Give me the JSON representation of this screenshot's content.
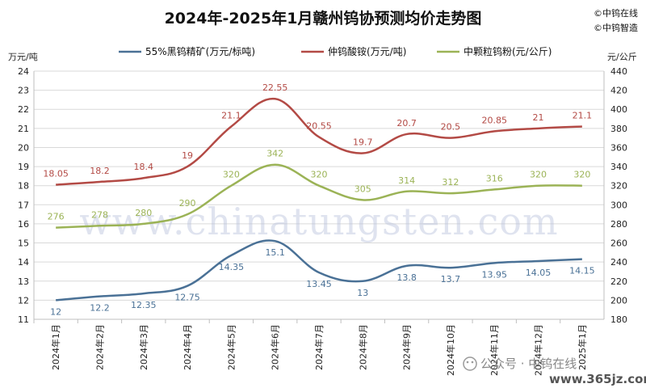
{
  "chart_data": {
    "type": "line",
    "title": "2024年-2025年1月赣州钨协预测均价走势图",
    "copyright": [
      "©中钨在线",
      "©中钨智造"
    ],
    "left_unit": "万元/吨",
    "right_unit": "元/公斤",
    "left_ylim": [
      11,
      24
    ],
    "right_ylim": [
      180,
      440
    ],
    "left_ticks": [
      "11",
      "12",
      "13",
      "14",
      "15",
      "16",
      "17",
      "18",
      "19",
      "20",
      "21",
      "22",
      "23",
      "24"
    ],
    "right_ticks": [
      "180",
      "200",
      "220",
      "240",
      "260",
      "280",
      "300",
      "320",
      "340",
      "360",
      "380",
      "400",
      "420",
      "440"
    ],
    "categories": [
      "2024年1月",
      "2024年2月",
      "2024年3月",
      "2024年4月",
      "2024年5月",
      "2024年6月",
      "2024年7月",
      "2024年8月",
      "2024年9月",
      "2024年10月",
      "2024年11月",
      "2024年12月",
      "2025年1月"
    ],
    "grid": true,
    "legend_position": "top",
    "series": [
      {
        "name": "55%黑钨精矿(万元/标吨)",
        "axis": "left",
        "color": "#4a7196",
        "values": [
          12,
          12.2,
          12.35,
          12.75,
          14.35,
          15.1,
          13.45,
          13,
          13.8,
          13.7,
          13.95,
          14.05,
          14.15
        ],
        "labels": [
          "12",
          "12.2",
          "12.35",
          "12.75",
          "14.35",
          "15.1",
          "13.45",
          "13",
          "13.8",
          "13.7",
          "13.95",
          "14.05",
          "14.15"
        ]
      },
      {
        "name": "仲钨酸铵(万元/吨)",
        "axis": "left",
        "color": "#b34a45",
        "values": [
          18.05,
          18.2,
          18.4,
          19,
          21.1,
          22.55,
          20.55,
          19.7,
          20.7,
          20.5,
          20.85,
          21,
          21.1
        ],
        "labels": [
          "18.05",
          "18.2",
          "18.4",
          "19",
          "21.1",
          "22.55",
          "20.55",
          "19.7",
          "20.7",
          "20.5",
          "20.85",
          "21",
          "21.1"
        ]
      },
      {
        "name": "中颗粒钨粉(元/公斤)",
        "axis": "right",
        "color": "#9bb356",
        "values": [
          276,
          278,
          280,
          290,
          320,
          342,
          320,
          305,
          314,
          312,
          316,
          320,
          320
        ],
        "labels": [
          "276",
          "278",
          "280",
          "290",
          "320",
          "342",
          "320",
          "305",
          "314",
          "312",
          "316",
          "320",
          "320"
        ]
      }
    ]
  },
  "watermark": "www.chinatungsten.com",
  "footer": {
    "account": "公众号 · 中钨在线",
    "url": "www.365jz.com"
  }
}
